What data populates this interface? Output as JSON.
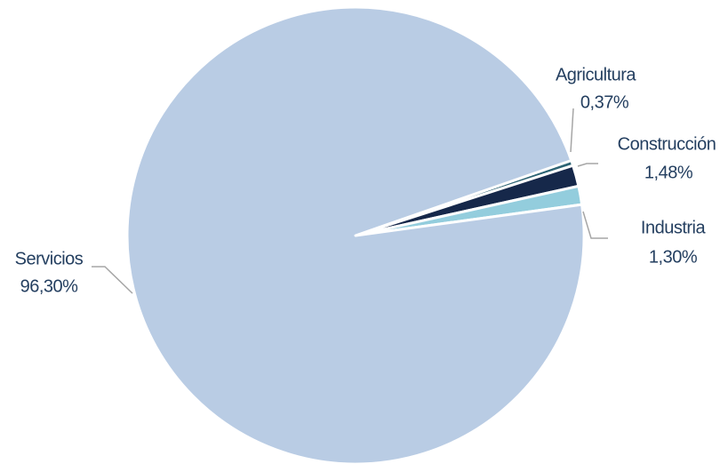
{
  "chart_data": {
    "type": "pie",
    "categories": [
      "Agricultura",
      "Construcción",
      "Industria",
      "Servicios"
    ],
    "values": [
      0.37,
      1.48,
      1.3,
      96.3
    ],
    "value_labels": [
      "0,37%",
      "1,48%",
      "1,30%",
      "96,30%"
    ],
    "colors": [
      "#2d6474",
      "#16284a",
      "#93cddd",
      "#b9cce4"
    ]
  }
}
